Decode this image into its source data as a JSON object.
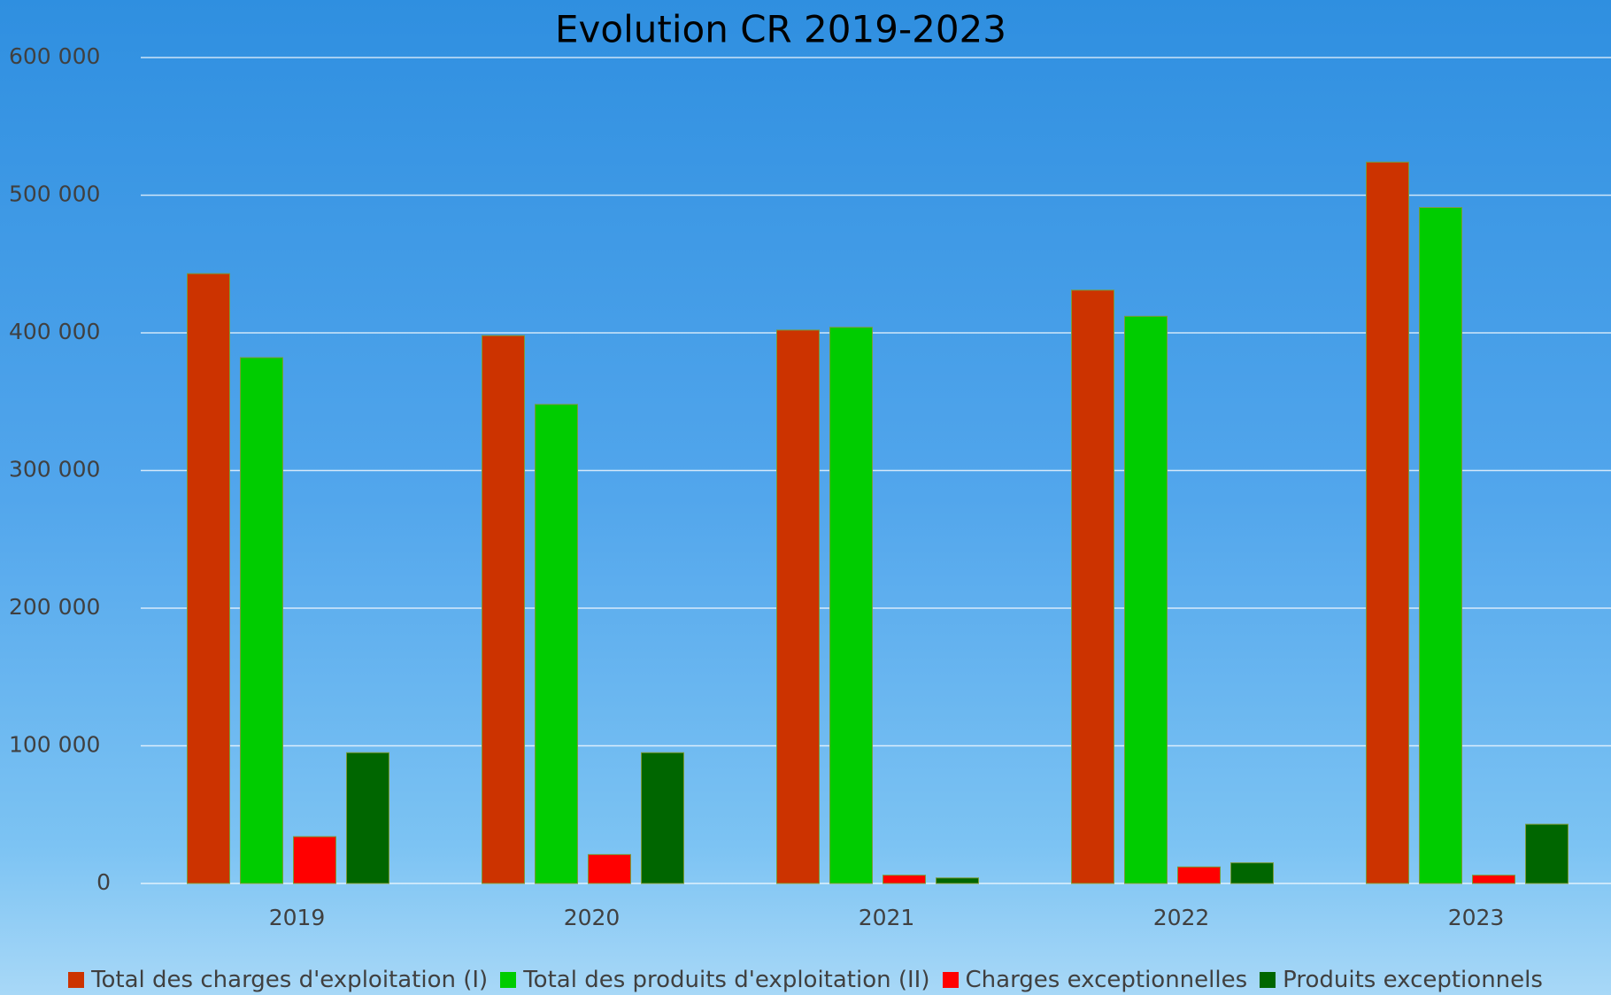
{
  "chart_data": {
    "type": "bar",
    "title": "Evolution CR 2019-2023",
    "categories": [
      "2019",
      "2020",
      "2021",
      "2022",
      "2023"
    ],
    "series": [
      {
        "name": "Total des charges d'exploitation (I)",
        "color": "#cc3300",
        "values": [
          443000,
          398000,
          402000,
          431000,
          524000
        ]
      },
      {
        "name": "Total des produits d'exploitation (II)",
        "color": "#00cc00",
        "values": [
          382000,
          348000,
          404000,
          412000,
          491000
        ]
      },
      {
        "name": "Charges exceptionnelles",
        "color": "#ff0000",
        "values": [
          34000,
          21000,
          6000,
          12000,
          6000
        ]
      },
      {
        "name": "Produits exceptionnels",
        "color": "#006600",
        "values": [
          95000,
          95000,
          4000,
          15000,
          43000
        ]
      }
    ],
    "ylim": [
      0,
      600000
    ],
    "yticks": [
      0,
      {
        "value": 100000,
        "label": "100 000"
      },
      {
        "value": 200000,
        "label": "200 000"
      },
      {
        "value": 300000,
        "label": "300 000"
      },
      {
        "value": 400000,
        "label": "400 000"
      },
      {
        "value": 500000,
        "label": "500 000"
      },
      {
        "value": 600000,
        "label": "600 000"
      }
    ],
    "grid": true,
    "legend": "bottom"
  }
}
